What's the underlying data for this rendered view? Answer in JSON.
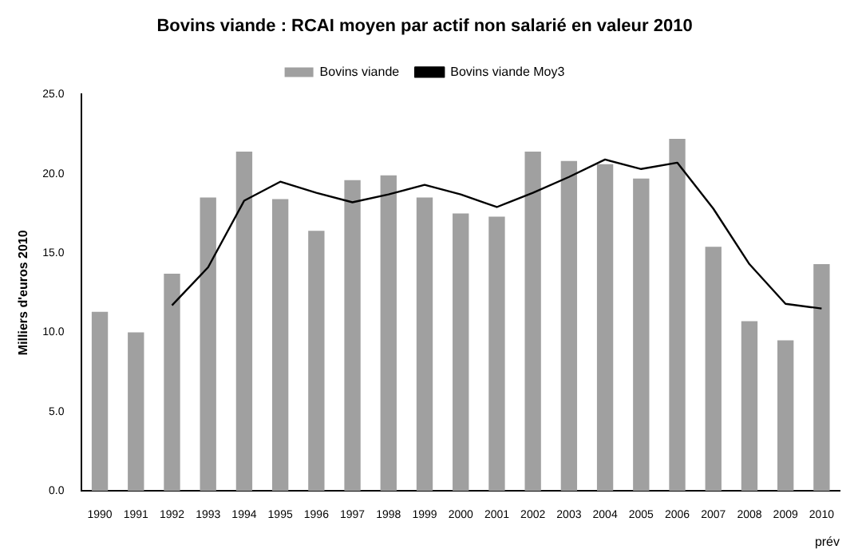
{
  "chart_data": {
    "type": "bar",
    "title": "Bovins viande : RCAI moyen par actif non salarié en valeur 2010",
    "ylabel": "Milliers d'euros 2010",
    "categories": [
      "1990",
      "1991",
      "1992",
      "1993",
      "1994",
      "1995",
      "1996",
      "1997",
      "1998",
      "1999",
      "2000",
      "2001",
      "2002",
      "2003",
      "2004",
      "2005",
      "2006",
      "2007",
      "2008",
      "2009",
      "2010"
    ],
    "series": [
      {
        "name": "Bovins viande",
        "color": "#a0a0a0",
        "values": [
          11.3,
          10.0,
          13.7,
          18.5,
          21.4,
          18.4,
          16.4,
          19.6,
          19.9,
          18.5,
          17.5,
          17.3,
          21.4,
          20.8,
          20.6,
          19.7,
          22.2,
          15.4,
          10.7,
          9.5,
          14.3
        ]
      },
      {
        "name": "Bovins viande Moy3",
        "type": "line",
        "color": "#000000",
        "values": [
          null,
          null,
          11.7,
          14.1,
          18.3,
          19.5,
          18.8,
          18.2,
          18.7,
          19.3,
          18.7,
          17.9,
          18.8,
          19.8,
          20.9,
          20.3,
          20.7,
          17.8,
          14.3,
          11.8,
          11.5
        ]
      }
    ],
    "ylim": [
      0,
      25
    ],
    "yticks": [
      {
        "value": 0,
        "label": "0.0"
      },
      {
        "value": 5,
        "label": "5.0"
      },
      {
        "value": 10,
        "label": "10.0"
      },
      {
        "value": 15,
        "label": "15.0"
      },
      {
        "value": 20,
        "label": "20.0"
      },
      {
        "value": 25,
        "label": "25.0"
      }
    ],
    "grid": false,
    "legend": "top",
    "marker": "none",
    "annotations": [
      "prév"
    ]
  }
}
